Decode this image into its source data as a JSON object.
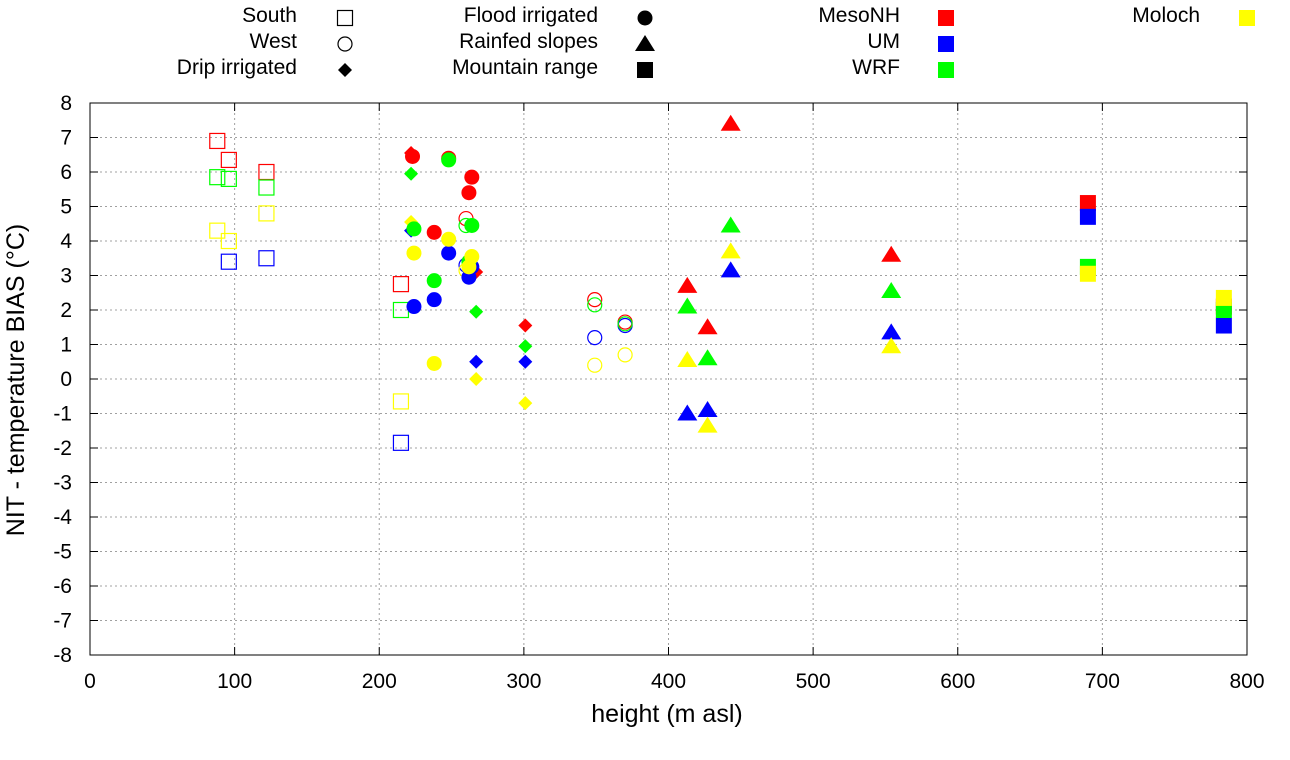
{
  "chart_data": {
    "type": "scatter",
    "xlabel": "height (m asl)",
    "ylabel": "NIT - temperature BIAS (°C)",
    "xlim": [
      0,
      800
    ],
    "ylim": [
      -8,
      8
    ],
    "xticks": [
      0,
      100,
      200,
      300,
      400,
      500,
      600,
      700,
      800
    ],
    "yticks": [
      -8,
      -7,
      -6,
      -5,
      -4,
      -3,
      -2,
      -1,
      0,
      1,
      2,
      3,
      4,
      5,
      6,
      7,
      8
    ],
    "grid": true,
    "legend_markers": [
      {
        "label": "South",
        "marker": "open-square"
      },
      {
        "label": "West",
        "marker": "open-circle"
      },
      {
        "label": "Drip irrigated",
        "marker": "filled-diamond"
      },
      {
        "label": "Flood irrigated",
        "marker": "filled-circle"
      },
      {
        "label": "Rainfed slopes",
        "marker": "filled-triangle"
      },
      {
        "label": "Mountain range",
        "marker": "filled-square"
      }
    ],
    "legend_models": [
      {
        "label": "MesoNH",
        "color": "#ff0000"
      },
      {
        "label": "UM",
        "color": "#0000ff"
      },
      {
        "label": "WRF",
        "color": "#00ff00"
      },
      {
        "label": "Moloch",
        "color": "#ffff00"
      }
    ],
    "series": [
      {
        "name": "MesoNH",
        "color": "#ff0000",
        "points": [
          {
            "x": 88,
            "y": 6.9,
            "marker": "open-square"
          },
          {
            "x": 96,
            "y": 6.35,
            "marker": "open-square"
          },
          {
            "x": 122,
            "y": 6.0,
            "marker": "open-square"
          },
          {
            "x": 215,
            "y": 2.75,
            "marker": "open-square"
          },
          {
            "x": 260,
            "y": 4.65,
            "marker": "open-circle"
          },
          {
            "x": 349,
            "y": 2.3,
            "marker": "open-circle"
          },
          {
            "x": 370,
            "y": 1.65,
            "marker": "open-circle"
          },
          {
            "x": 222,
            "y": 6.55,
            "marker": "filled-diamond"
          },
          {
            "x": 267,
            "y": 3.1,
            "marker": "filled-diamond"
          },
          {
            "x": 301,
            "y": 1.55,
            "marker": "filled-diamond"
          },
          {
            "x": 223,
            "y": 6.45,
            "marker": "filled-circle"
          },
          {
            "x": 238,
            "y": 4.25,
            "marker": "filled-circle"
          },
          {
            "x": 248,
            "y": 6.4,
            "marker": "filled-circle"
          },
          {
            "x": 262,
            "y": 5.4,
            "marker": "filled-circle"
          },
          {
            "x": 264,
            "y": 5.85,
            "marker": "filled-circle"
          },
          {
            "x": 413,
            "y": 2.7,
            "marker": "filled-triangle"
          },
          {
            "x": 427,
            "y": 1.5,
            "marker": "filled-triangle"
          },
          {
            "x": 443,
            "y": 7.4,
            "marker": "filled-triangle"
          },
          {
            "x": 554,
            "y": 3.6,
            "marker": "filled-triangle"
          },
          {
            "x": 690,
            "y": 5.1,
            "marker": "filled-square"
          },
          {
            "x": 784,
            "y": 2.1,
            "marker": "filled-square"
          }
        ]
      },
      {
        "name": "UM",
        "color": "#0000ff",
        "points": [
          {
            "x": 96,
            "y": 3.4,
            "marker": "open-square"
          },
          {
            "x": 122,
            "y": 3.5,
            "marker": "open-square"
          },
          {
            "x": 215,
            "y": -1.85,
            "marker": "open-square"
          },
          {
            "x": 260,
            "y": 3.3,
            "marker": "open-circle"
          },
          {
            "x": 349,
            "y": 1.2,
            "marker": "open-circle"
          },
          {
            "x": 370,
            "y": 1.55,
            "marker": "open-circle"
          },
          {
            "x": 222,
            "y": 4.3,
            "marker": "filled-diamond"
          },
          {
            "x": 267,
            "y": 0.5,
            "marker": "filled-diamond"
          },
          {
            "x": 301,
            "y": 0.5,
            "marker": "filled-diamond"
          },
          {
            "x": 224,
            "y": 2.1,
            "marker": "filled-circle"
          },
          {
            "x": 238,
            "y": 2.3,
            "marker": "filled-circle"
          },
          {
            "x": 248,
            "y": 3.65,
            "marker": "filled-circle"
          },
          {
            "x": 262,
            "y": 2.95,
            "marker": "filled-circle"
          },
          {
            "x": 264,
            "y": 3.25,
            "marker": "filled-circle"
          },
          {
            "x": 413,
            "y": -1.0,
            "marker": "filled-triangle"
          },
          {
            "x": 427,
            "y": -0.9,
            "marker": "filled-triangle"
          },
          {
            "x": 443,
            "y": 3.15,
            "marker": "filled-triangle"
          },
          {
            "x": 554,
            "y": 1.35,
            "marker": "filled-triangle"
          },
          {
            "x": 690,
            "y": 4.7,
            "marker": "filled-square"
          },
          {
            "x": 784,
            "y": 1.55,
            "marker": "filled-square"
          }
        ]
      },
      {
        "name": "WRF",
        "color": "#00ff00",
        "points": [
          {
            "x": 88,
            "y": 5.85,
            "marker": "open-square"
          },
          {
            "x": 96,
            "y": 5.8,
            "marker": "open-square"
          },
          {
            "x": 122,
            "y": 5.55,
            "marker": "open-square"
          },
          {
            "x": 215,
            "y": 2.0,
            "marker": "open-square"
          },
          {
            "x": 260,
            "y": 4.45,
            "marker": "open-circle"
          },
          {
            "x": 349,
            "y": 2.15,
            "marker": "open-circle"
          },
          {
            "x": 370,
            "y": 1.6,
            "marker": "open-circle"
          },
          {
            "x": 222,
            "y": 5.95,
            "marker": "filled-diamond"
          },
          {
            "x": 267,
            "y": 1.95,
            "marker": "filled-diamond"
          },
          {
            "x": 301,
            "y": 0.95,
            "marker": "filled-diamond"
          },
          {
            "x": 224,
            "y": 4.35,
            "marker": "filled-circle"
          },
          {
            "x": 238,
            "y": 2.85,
            "marker": "filled-circle"
          },
          {
            "x": 248,
            "y": 6.35,
            "marker": "filled-circle"
          },
          {
            "x": 262,
            "y": 3.4,
            "marker": "filled-circle"
          },
          {
            "x": 264,
            "y": 4.45,
            "marker": "filled-circle"
          },
          {
            "x": 413,
            "y": 2.1,
            "marker": "filled-triangle"
          },
          {
            "x": 427,
            "y": 0.6,
            "marker": "filled-triangle"
          },
          {
            "x": 443,
            "y": 4.45,
            "marker": "filled-triangle"
          },
          {
            "x": 554,
            "y": 2.55,
            "marker": "filled-triangle"
          },
          {
            "x": 690,
            "y": 3.25,
            "marker": "filled-square"
          },
          {
            "x": 784,
            "y": 2.0,
            "marker": "filled-square"
          }
        ]
      },
      {
        "name": "Moloch",
        "color": "#ffff00",
        "points": [
          {
            "x": 88,
            "y": 4.3,
            "marker": "open-square"
          },
          {
            "x": 96,
            "y": 4.0,
            "marker": "open-square"
          },
          {
            "x": 122,
            "y": 4.8,
            "marker": "open-square"
          },
          {
            "x": 215,
            "y": -0.65,
            "marker": "open-square"
          },
          {
            "x": 260,
            "y": 3.15,
            "marker": "open-circle"
          },
          {
            "x": 349,
            "y": 0.4,
            "marker": "open-circle"
          },
          {
            "x": 370,
            "y": 0.7,
            "marker": "open-circle"
          },
          {
            "x": 222,
            "y": 4.55,
            "marker": "filled-diamond"
          },
          {
            "x": 267,
            "y": 0.0,
            "marker": "filled-diamond"
          },
          {
            "x": 301,
            "y": -0.7,
            "marker": "filled-diamond"
          },
          {
            "x": 224,
            "y": 3.65,
            "marker": "filled-circle"
          },
          {
            "x": 238,
            "y": 0.45,
            "marker": "filled-circle"
          },
          {
            "x": 248,
            "y": 4.05,
            "marker": "filled-circle"
          },
          {
            "x": 262,
            "y": 3.25,
            "marker": "filled-circle"
          },
          {
            "x": 264,
            "y": 3.55,
            "marker": "filled-circle"
          },
          {
            "x": 413,
            "y": 0.55,
            "marker": "filled-triangle"
          },
          {
            "x": 427,
            "y": -1.35,
            "marker": "filled-triangle"
          },
          {
            "x": 443,
            "y": 3.7,
            "marker": "filled-triangle"
          },
          {
            "x": 554,
            "y": 0.95,
            "marker": "filled-triangle"
          },
          {
            "x": 690,
            "y": 3.05,
            "marker": "filled-square"
          },
          {
            "x": 784,
            "y": 2.35,
            "marker": "filled-square"
          }
        ]
      }
    ]
  }
}
